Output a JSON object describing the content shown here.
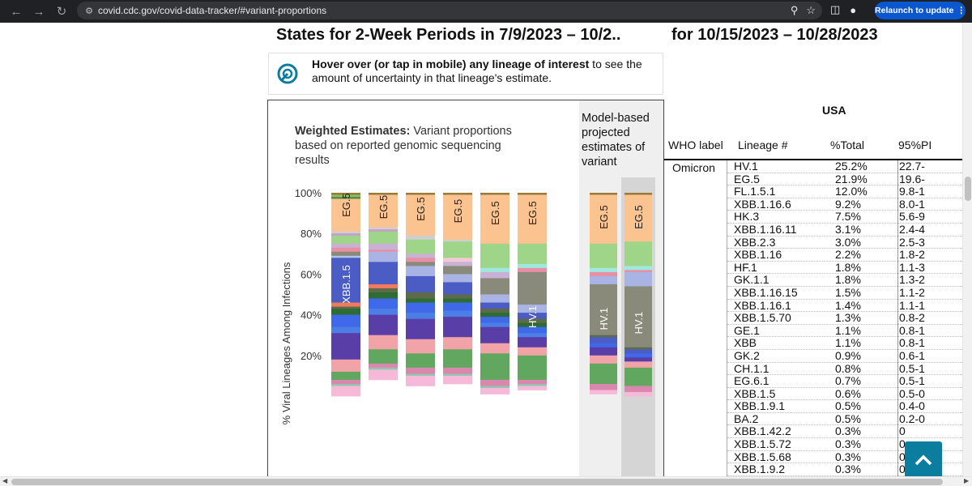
{
  "browser": {
    "url": "covid.cdc.gov/covid-data-tracker/#variant-proportions",
    "relaunch_label": "Relaunch to update",
    "nav_icons": [
      "back-icon",
      "forward-icon",
      "reload-icon"
    ],
    "omnibox_icons": [
      "zoom-icon",
      "bookmark-star-icon"
    ],
    "toolbar_icons": [
      "side-panel-icon",
      "profile-icon",
      "more-icon"
    ]
  },
  "page": {
    "heading_left": "States for 2-Week Periods in 7/9/2023 – 10/2..",
    "heading_right": "for 10/15/2023 – 10/28/2023",
    "hint_bold": "Hover over (or tap in mobile) any lineage of interest",
    "hint_rest": " to see the amount of uncertainty in that lineage's estimate.",
    "weighted_bold": "Weighted Estimates:",
    "weighted_rest": " Variant proportions based on reported genomic sequencing results",
    "projection_title": "Model-based projected estimates of variant"
  },
  "chart_data": {
    "type": "bar",
    "stacked": true,
    "ylabel": "% Viral Lineages Among Infections",
    "y_ticks": [
      "100%",
      "80%",
      "60%",
      "40%",
      "20%"
    ],
    "ylim": [
      0,
      100
    ],
    "bar_labels": [
      {
        "bar": 0,
        "text": "EG.5"
      },
      {
        "bar": 0,
        "text": "XBB.1.5"
      },
      {
        "bar": 1,
        "text": "EG.5"
      },
      {
        "bar": 2,
        "text": "EG.5"
      },
      {
        "bar": 3,
        "text": "EG.5"
      },
      {
        "bar": 4,
        "text": "EG.5"
      },
      {
        "bar": 5,
        "text": "EG.5"
      },
      {
        "bar": 5,
        "text": "HV.1"
      },
      {
        "bar": 6,
        "text": "EG.5"
      },
      {
        "bar": 6,
        "text": "HV.1"
      },
      {
        "bar": 7,
        "text": "EG.5"
      },
      {
        "bar": 7,
        "text": "HV.1"
      }
    ],
    "bars": [
      {
        "segments": [
          [
            1,
            "#9a7a3a"
          ],
          [
            1,
            "#8cbf5e"
          ],
          [
            1,
            "#5b8b4a"
          ],
          [
            16,
            "#fbc38f"
          ],
          [
            1,
            "#cfcfcf"
          ],
          [
            1,
            "#c99bc9"
          ],
          [
            4,
            "#9ed589"
          ],
          [
            2,
            "#c8b1d4"
          ],
          [
            2,
            "#e88fa4"
          ],
          [
            2,
            "#8a8a7a"
          ],
          [
            1,
            "#b0c4e8"
          ],
          [
            22,
            "#4b5cc4"
          ],
          [
            2,
            "#f0795e"
          ],
          [
            1,
            "#5e6b49"
          ],
          [
            3,
            "#2e6c35"
          ],
          [
            6,
            "#3f69e8"
          ],
          [
            3,
            "#4c7fe6"
          ],
          [
            13,
            "#5a3ea8"
          ],
          [
            6,
            "#f2a3a8"
          ],
          [
            4,
            "#62a760"
          ],
          [
            2,
            "#d987ad"
          ],
          [
            1,
            "#93c5ae"
          ],
          [
            5,
            "#f6b9d8"
          ]
        ]
      },
      {
        "segments": [
          [
            1,
            "#9a7a3a"
          ],
          [
            16,
            "#fbc38f"
          ],
          [
            1,
            "#cfcfcf"
          ],
          [
            1,
            "#c99bc9"
          ],
          [
            6,
            "#9ed589"
          ],
          [
            3,
            "#c8b1d4"
          ],
          [
            1,
            "#e88fa4"
          ],
          [
            5,
            "#a9b4e4"
          ],
          [
            11,
            "#4b5cc4"
          ],
          [
            2,
            "#f0795e"
          ],
          [
            2,
            "#5e6b49"
          ],
          [
            3,
            "#2e6c35"
          ],
          [
            5,
            "#3f69e8"
          ],
          [
            3,
            "#4c7fe6"
          ],
          [
            10,
            "#5a3ea8"
          ],
          [
            7,
            "#f2a3a8"
          ],
          [
            7,
            "#62a760"
          ],
          [
            2,
            "#d987ad"
          ],
          [
            1,
            "#93c5ae"
          ],
          [
            5,
            "#f6b9d8"
          ]
        ]
      },
      {
        "segments": [
          [
            1,
            "#9a7a3a"
          ],
          [
            20,
            "#fbc38f"
          ],
          [
            2,
            "#cfcfcf"
          ],
          [
            7,
            "#9ed589"
          ],
          [
            2,
            "#c8b1d4"
          ],
          [
            2,
            "#e88fa4"
          ],
          [
            2,
            "#8a8a7a"
          ],
          [
            5,
            "#a9b4e4"
          ],
          [
            8,
            "#4b5cc4"
          ],
          [
            3,
            "#5e6b49"
          ],
          [
            2,
            "#2e6c35"
          ],
          [
            5,
            "#3f69e8"
          ],
          [
            3,
            "#4c7fe6"
          ],
          [
            10,
            "#5a3ea8"
          ],
          [
            7,
            "#f2a3a8"
          ],
          [
            7,
            "#62a760"
          ],
          [
            3,
            "#d987ad"
          ],
          [
            1,
            "#93c5ae"
          ],
          [
            5,
            "#f6b9d8"
          ]
        ]
      },
      {
        "segments": [
          [
            1,
            "#9a7a3a"
          ],
          [
            22,
            "#fbc38f"
          ],
          [
            1,
            "#cfcfcf"
          ],
          [
            8,
            "#9ed589"
          ],
          [
            2,
            "#f4c9d4"
          ],
          [
            2,
            "#c8b1d4"
          ],
          [
            4,
            "#8a8a7a"
          ],
          [
            4,
            "#a9b4e4"
          ],
          [
            6,
            "#4b5cc4"
          ],
          [
            2,
            "#5e6b49"
          ],
          [
            2,
            "#2e6c35"
          ],
          [
            4,
            "#3f69e8"
          ],
          [
            3,
            "#4c7fe6"
          ],
          [
            10,
            "#5a3ea8"
          ],
          [
            6,
            "#f2a3a8"
          ],
          [
            9,
            "#62a760"
          ],
          [
            3,
            "#d987ad"
          ],
          [
            1,
            "#93c5ae"
          ],
          [
            4,
            "#f6b9d8"
          ]
        ]
      },
      {
        "segments": [
          [
            1,
            "#9a7a3a"
          ],
          [
            24,
            "#fbc38f"
          ],
          [
            12,
            "#9ed589"
          ],
          [
            2,
            "#9ee8e0"
          ],
          [
            3,
            "#c8b1d4"
          ],
          [
            8,
            "#8a8a7a"
          ],
          [
            4,
            "#a9b4e4"
          ],
          [
            3,
            "#4b5cc4"
          ],
          [
            2,
            "#5e6b49"
          ],
          [
            2,
            "#2e6c35"
          ],
          [
            3,
            "#3f69e8"
          ],
          [
            2,
            "#4c7fe6"
          ],
          [
            8,
            "#5a3ea8"
          ],
          [
            5,
            "#f2a3a8"
          ],
          [
            13,
            "#62a760"
          ],
          [
            3,
            "#d987ad"
          ],
          [
            1,
            "#93c5ae"
          ],
          [
            3,
            "#f6b9d8"
          ]
        ]
      },
      {
        "segments": [
          [
            1,
            "#9a7a3a"
          ],
          [
            24,
            "#fbc38f"
          ],
          [
            10,
            "#9ed589"
          ],
          [
            2,
            "#9ee8e0"
          ],
          [
            2,
            "#e88fa4"
          ],
          [
            16,
            "#8a8a7a"
          ],
          [
            4,
            "#a9b4e4"
          ],
          [
            3,
            "#4b5cc4"
          ],
          [
            2,
            "#5e6b49"
          ],
          [
            2,
            "#2e6c35"
          ],
          [
            3,
            "#3f69e8"
          ],
          [
            2,
            "#4c7fe6"
          ],
          [
            5,
            "#5a3ea8"
          ],
          [
            4,
            "#f2a3a8"
          ],
          [
            12,
            "#62a760"
          ],
          [
            2,
            "#d987ad"
          ],
          [
            1,
            "#93c5ae"
          ],
          [
            2,
            "#f6b9d8"
          ]
        ]
      },
      {
        "segments": [
          [
            1,
            "#9a7a3a"
          ],
          [
            24,
            "#fbc38f"
          ],
          [
            12,
            "#9ed589"
          ],
          [
            2,
            "#9ee8e0"
          ],
          [
            2,
            "#e88fa4"
          ],
          [
            4,
            "#a9b4e4"
          ],
          [
            25,
            "#8a8a7a"
          ],
          [
            1,
            "#5e6b49"
          ],
          [
            3,
            "#4b5cc4"
          ],
          [
            2,
            "#3f69e8"
          ],
          [
            4,
            "#5a3ea8"
          ],
          [
            4,
            "#f2a3a8"
          ],
          [
            10,
            "#62a760"
          ],
          [
            3,
            "#d987ad"
          ],
          [
            2,
            "#f6b9d8"
          ]
        ]
      },
      {
        "segments": [
          [
            1,
            "#9a7a3a"
          ],
          [
            23,
            "#fbc38f"
          ],
          [
            12,
            "#9ed589"
          ],
          [
            2,
            "#9ee8e0"
          ],
          [
            1,
            "#e88fa4"
          ],
          [
            7,
            "#a9b4e4"
          ],
          [
            30,
            "#8a8a7a"
          ],
          [
            1,
            "#5e6b49"
          ],
          [
            2,
            "#4b5cc4"
          ],
          [
            2,
            "#3f69e8"
          ],
          [
            2,
            "#5a3ea8"
          ],
          [
            3,
            "#f2a3a8"
          ],
          [
            9,
            "#62a760"
          ],
          [
            3,
            "#d987ad"
          ],
          [
            2,
            "#f6b9d8"
          ]
        ]
      }
    ]
  },
  "table": {
    "region": "USA",
    "headers": [
      "WHO label",
      "Lineage #",
      "%Total",
      "95%PI"
    ],
    "who_label": "Omicron",
    "rows": [
      {
        "lineage": "HV.1",
        "pct": "25.2%",
        "ci": "22.7-"
      },
      {
        "lineage": "EG.5",
        "pct": "21.9%",
        "ci": "19.6-"
      },
      {
        "lineage": "FL.1.5.1",
        "pct": "12.0%",
        "ci": "9.8-1"
      },
      {
        "lineage": "XBB.1.16.6",
        "pct": "9.2%",
        "ci": "8.0-1"
      },
      {
        "lineage": "HK.3",
        "pct": "7.5%",
        "ci": "5.6-9"
      },
      {
        "lineage": "XBB.1.16.11",
        "pct": "3.1%",
        "ci": "2.4-4"
      },
      {
        "lineage": "XBB.2.3",
        "pct": "3.0%",
        "ci": "2.5-3"
      },
      {
        "lineage": "XBB.1.16",
        "pct": "2.2%",
        "ci": "1.8-2"
      },
      {
        "lineage": "HF.1",
        "pct": "1.8%",
        "ci": "1.1-3"
      },
      {
        "lineage": "GK.1.1",
        "pct": "1.8%",
        "ci": "1.3-2"
      },
      {
        "lineage": "XBB.1.16.15",
        "pct": "1.5%",
        "ci": "1.1-2"
      },
      {
        "lineage": "XBB.1.16.1",
        "pct": "1.4%",
        "ci": "1.1-1"
      },
      {
        "lineage": "XBB.1.5.70",
        "pct": "1.3%",
        "ci": "0.8-2"
      },
      {
        "lineage": "GE.1",
        "pct": "1.1%",
        "ci": "0.8-1"
      },
      {
        "lineage": "XBB",
        "pct": "1.1%",
        "ci": "0.8-1"
      },
      {
        "lineage": "GK.2",
        "pct": "0.9%",
        "ci": "0.6-1"
      },
      {
        "lineage": "CH.1.1",
        "pct": "0.8%",
        "ci": "0.5-1"
      },
      {
        "lineage": "EG.6.1",
        "pct": "0.7%",
        "ci": "0.5-1"
      },
      {
        "lineage": "XBB.1.5",
        "pct": "0.6%",
        "ci": "0.5-0"
      },
      {
        "lineage": "XBB.1.9.1",
        "pct": "0.5%",
        "ci": "0.4-0"
      },
      {
        "lineage": "BA.2",
        "pct": "0.5%",
        "ci": "0.2-0"
      },
      {
        "lineage": "XBB.1.42.2",
        "pct": "0.3%",
        "ci": "0"
      },
      {
        "lineage": "XBB.1.5.72",
        "pct": "0.3%",
        "ci": "0"
      },
      {
        "lineage": "XBB.1.5.68",
        "pct": "0.3%",
        "ci": "0."
      },
      {
        "lineage": "XBB.1.9.2",
        "pct": "0.3%",
        "ci": "0.2-0"
      }
    ]
  },
  "colors": {
    "accent": "#0b7ea0",
    "relaunch": "#0b57d0",
    "chrome": "#202124"
  }
}
